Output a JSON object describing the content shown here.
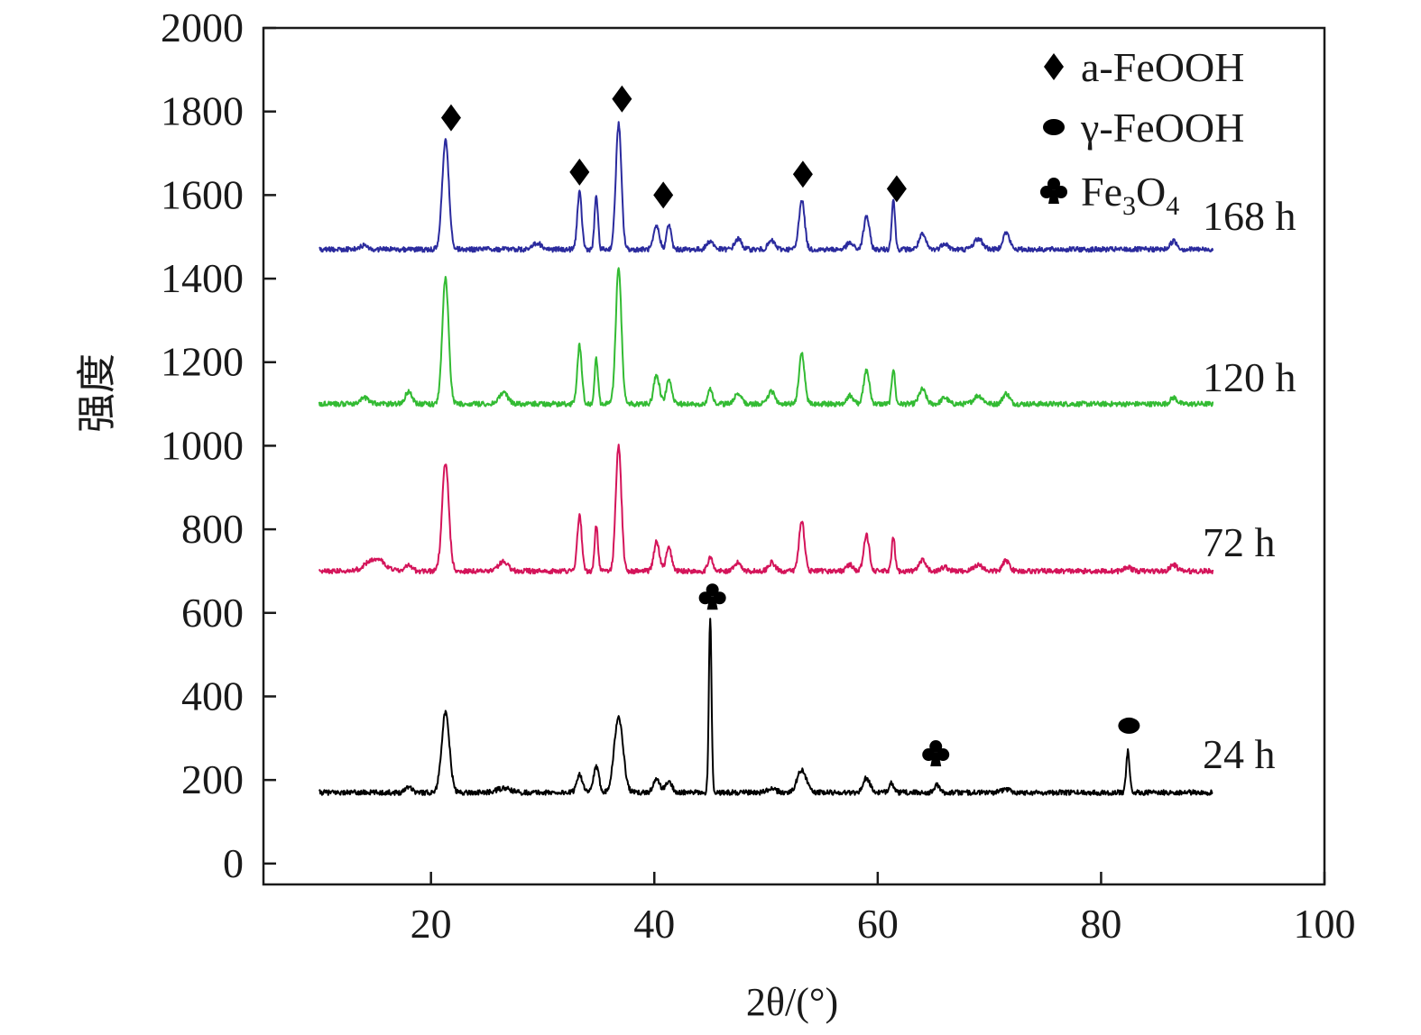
{
  "chart_data": {
    "type": "line",
    "xlabel": "2θ/(°)",
    "ylabel": "强度",
    "xlim": [
      5,
      100
    ],
    "ylim": [
      -50,
      2000
    ],
    "xticks": [
      20,
      40,
      60,
      80,
      100
    ],
    "yticks": [
      0,
      200,
      400,
      600,
      800,
      1000,
      1200,
      1400,
      1600,
      1800,
      2000
    ],
    "grid": false,
    "legend_position": "top-right",
    "legend": [
      {
        "marker": "diamond",
        "text": "a-FeOOH"
      },
      {
        "marker": "ellipse",
        "text": "γ-FeOOH"
      },
      {
        "marker": "club",
        "text_main": "Fe",
        "text_sub1": "3",
        "text_mid": "O",
        "text_sub2": "4"
      }
    ],
    "series": [
      {
        "name": "24 h",
        "color": "#000000",
        "baseline": 170,
        "x_range": [
          10,
          90
        ],
        "peaks": [
          [
            18,
            15,
            0.3
          ],
          [
            21.3,
            190,
            0.35
          ],
          [
            26.5,
            10,
            0.6
          ],
          [
            33.3,
            45,
            0.25
          ],
          [
            34.8,
            60,
            0.25
          ],
          [
            36.8,
            180,
            0.4
          ],
          [
            40.2,
            30,
            0.3
          ],
          [
            41.3,
            25,
            0.3
          ],
          [
            45,
            420,
            0.12
          ],
          [
            50.5,
            8,
            0.4
          ],
          [
            53.2,
            55,
            0.4
          ],
          [
            59,
            35,
            0.3
          ],
          [
            61.2,
            25,
            0.2
          ],
          [
            65.3,
            20,
            0.2
          ],
          [
            71.5,
            8,
            0.4
          ],
          [
            82.4,
            100,
            0.15
          ]
        ]
      },
      {
        "name": "72 h",
        "color": "#d4145a",
        "baseline": 700,
        "x_range": [
          10,
          90
        ],
        "peaks": [
          [
            15,
            30,
            0.8
          ],
          [
            18,
            15,
            0.3
          ],
          [
            21.3,
            260,
            0.3
          ],
          [
            26.5,
            25,
            0.4
          ],
          [
            33.3,
            135,
            0.2
          ],
          [
            34.8,
            110,
            0.15
          ],
          [
            36.8,
            300,
            0.25
          ],
          [
            40.2,
            70,
            0.25
          ],
          [
            41.3,
            55,
            0.25
          ],
          [
            45,
            35,
            0.2
          ],
          [
            47.5,
            20,
            0.3
          ],
          [
            50.5,
            20,
            0.3
          ],
          [
            53.2,
            120,
            0.25
          ],
          [
            57.5,
            15,
            0.3
          ],
          [
            59,
            85,
            0.25
          ],
          [
            61.4,
            80,
            0.15
          ],
          [
            64,
            25,
            0.3
          ],
          [
            66,
            10,
            0.3
          ],
          [
            69,
            15,
            0.4
          ],
          [
            71.5,
            25,
            0.3
          ],
          [
            82.4,
            10,
            0.3
          ],
          [
            86.5,
            15,
            0.3
          ]
        ]
      },
      {
        "name": "120 h",
        "color": "#33bb33",
        "baseline": 1100,
        "x_range": [
          10,
          90
        ],
        "peaks": [
          [
            14,
            15,
            0.4
          ],
          [
            18,
            30,
            0.3
          ],
          [
            21.3,
            300,
            0.28
          ],
          [
            26.5,
            25,
            0.4
          ],
          [
            33.3,
            140,
            0.2
          ],
          [
            34.8,
            110,
            0.15
          ],
          [
            36.8,
            330,
            0.25
          ],
          [
            40.2,
            70,
            0.25
          ],
          [
            41.3,
            55,
            0.25
          ],
          [
            45,
            35,
            0.2
          ],
          [
            47.5,
            25,
            0.3
          ],
          [
            50.5,
            30,
            0.3
          ],
          [
            53.2,
            120,
            0.25
          ],
          [
            57.5,
            20,
            0.3
          ],
          [
            59,
            80,
            0.25
          ],
          [
            61.4,
            85,
            0.15
          ],
          [
            64,
            35,
            0.3
          ],
          [
            66,
            15,
            0.3
          ],
          [
            69,
            20,
            0.4
          ],
          [
            71.5,
            25,
            0.3
          ],
          [
            86.5,
            15,
            0.3
          ]
        ]
      },
      {
        "name": "168 h",
        "color": "#2b2b9e",
        "baseline": 1470,
        "x_range": [
          10,
          90
        ],
        "peaks": [
          [
            14,
            10,
            0.4
          ],
          [
            21.3,
            260,
            0.3
          ],
          [
            29.5,
            15,
            0.4
          ],
          [
            33.3,
            135,
            0.2
          ],
          [
            34.8,
            130,
            0.15
          ],
          [
            36.8,
            300,
            0.25
          ],
          [
            40.2,
            55,
            0.25
          ],
          [
            41.3,
            60,
            0.2
          ],
          [
            45,
            20,
            0.3
          ],
          [
            47.5,
            25,
            0.3
          ],
          [
            50.5,
            20,
            0.3
          ],
          [
            53.2,
            120,
            0.25
          ],
          [
            57.5,
            15,
            0.3
          ],
          [
            59,
            80,
            0.25
          ],
          [
            61.4,
            120,
            0.15
          ],
          [
            64,
            35,
            0.3
          ],
          [
            66,
            15,
            0.3
          ],
          [
            69,
            25,
            0.4
          ],
          [
            71.5,
            40,
            0.3
          ],
          [
            86.5,
            20,
            0.3
          ]
        ]
      }
    ],
    "phase_markers": [
      {
        "symbol": "diamond",
        "x": 21.8,
        "y": 1785
      },
      {
        "symbol": "diamond",
        "x": 33.3,
        "y": 1655
      },
      {
        "symbol": "diamond",
        "x": 37.1,
        "y": 1830
      },
      {
        "symbol": "diamond",
        "x": 40.8,
        "y": 1600
      },
      {
        "symbol": "diamond",
        "x": 53.3,
        "y": 1650
      },
      {
        "symbol": "diamond",
        "x": 61.7,
        "y": 1615
      },
      {
        "symbol": "club",
        "x": 45.2,
        "y": 640
      },
      {
        "symbol": "club",
        "x": 65.2,
        "y": 265
      },
      {
        "symbol": "ellipse",
        "x": 82.5,
        "y": 330
      }
    ]
  }
}
